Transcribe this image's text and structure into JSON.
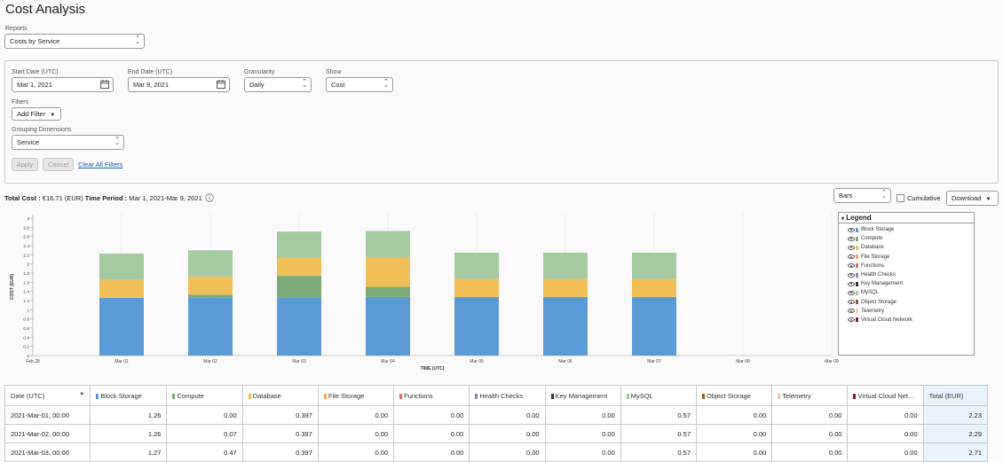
{
  "page": {
    "title": "Cost Analysis"
  },
  "reports": {
    "label": "Reports",
    "value": "Costs by Service"
  },
  "filters": {
    "start_date_label": "Start Date (UTC)",
    "start_date_value": "Mar 1, 2021",
    "end_date_label": "End Date (UTC)",
    "end_date_value": "Mar 9, 2021",
    "granularity_label": "Granularity",
    "granularity_value": "Daily",
    "show_label": "Show",
    "show_value": "Cost",
    "filters_label": "Filters",
    "add_filter_label": "Add Filter",
    "grouping_label": "Grouping Dimensions",
    "grouping_value": "Service",
    "apply_label": "Apply",
    "cancel_label": "Cancel",
    "clear_label": "Clear All Filters"
  },
  "summary": {
    "total_cost_label": "Total Cost :",
    "total_cost_value": "€16.71 (EUR)",
    "time_period_label": "Time Period :",
    "time_period_value": "Mar 1, 2021-Mar 9, 2021",
    "info_icon": "info-icon"
  },
  "chart_controls": {
    "chart_type_value": "Bars",
    "cumulative_label": "Cumulative",
    "download_label": "Download"
  },
  "legend": {
    "title": "Legend",
    "items": [
      {
        "label": "Block Storage",
        "color": "#5b9bd5"
      },
      {
        "label": "Compute",
        "color": "#7aaa78"
      },
      {
        "label": "Database",
        "color": "#f0bf58"
      },
      {
        "label": "File Storage",
        "color": "#f4a361"
      },
      {
        "label": "Functions",
        "color": "#e06c75"
      },
      {
        "label": "Health Checks",
        "color": "#9b7bc0"
      },
      {
        "label": "Key Management",
        "color": "#333333"
      },
      {
        "label": "MySQL",
        "color": "#a5c9a1"
      },
      {
        "label": "Object Storage",
        "color": "#8a5a3c"
      },
      {
        "label": "Telemetry",
        "color": "#f7c59f"
      },
      {
        "label": "Virtual Cloud Network",
        "color": "#8b1a2b"
      }
    ]
  },
  "chart_data": {
    "type": "bar",
    "stacked": true,
    "xlabel": "TIME (UTC)",
    "ylabel": "COST (EUR)",
    "ylim": [
      0,
      3
    ],
    "yticks": [
      "0",
      "0.2",
      "0.4",
      "0.6",
      "0.8",
      "1",
      "1.2",
      "1.4",
      "1.6",
      "1.8",
      "2",
      "2.2",
      "2.4",
      "2.6",
      "2.8",
      "3"
    ],
    "categories": [
      "Feb 28",
      "Mar 01",
      "Mar 02",
      "Mar 03",
      "Mar 04",
      "Mar 05",
      "Mar 06",
      "Mar 07",
      "Mar 08",
      "Mar 09"
    ],
    "series": [
      {
        "name": "Block Storage",
        "color": "#5b9bd5",
        "values": [
          0,
          1.26,
          1.26,
          1.27,
          1.28,
          1.28,
          1.28,
          1.28,
          0,
          0
        ]
      },
      {
        "name": "Compute",
        "color": "#7aaa78",
        "values": [
          0,
          0,
          0.07,
          0.47,
          0.22,
          0,
          0,
          0,
          0,
          0
        ]
      },
      {
        "name": "Database",
        "color": "#f0bf58",
        "values": [
          0,
          0.397,
          0.397,
          0.397,
          0.65,
          0.397,
          0.397,
          0.397,
          0,
          0
        ]
      },
      {
        "name": "MySQL",
        "color": "#a5c9a1",
        "values": [
          0,
          0.57,
          0.57,
          0.57,
          0.57,
          0.57,
          0.57,
          0.57,
          0,
          0
        ]
      }
    ]
  },
  "table": {
    "headers": [
      {
        "label": "Date (UTC)",
        "color": ""
      },
      {
        "label": "Block Storage",
        "color": "#5b9bd5"
      },
      {
        "label": "Compute",
        "color": "#7aaa78"
      },
      {
        "label": "Database",
        "color": "#f0bf58"
      },
      {
        "label": "File Storage",
        "color": "#f4a361"
      },
      {
        "label": "Functions",
        "color": "#e06c75"
      },
      {
        "label": "Health Checks",
        "color": "#9b7bc0"
      },
      {
        "label": "Key Management",
        "color": "#333333"
      },
      {
        "label": "MySQL",
        "color": "#a5c9a1"
      },
      {
        "label": "Object Storage",
        "color": "#8a5a3c"
      },
      {
        "label": "Telemetry",
        "color": "#f7c59f"
      },
      {
        "label": "Virtual Cloud Net...",
        "color": "#8b1a2b"
      },
      {
        "label": "Total (EUR)",
        "color": ""
      }
    ],
    "rows": [
      [
        "2021-Mar-01, 00:00",
        "1.26",
        "0.00",
        "0.397",
        "0.00",
        "0.00",
        "0.00",
        "0.00",
        "0.57",
        "0.00",
        "0.00",
        "0.00",
        "2.23"
      ],
      [
        "2021-Mar-02, 00:00",
        "1.26",
        "0.07",
        "0.397",
        "0.00",
        "0.00",
        "0.00",
        "0.00",
        "0.57",
        "0.00",
        "0.00",
        "0.00",
        "2.29"
      ],
      [
        "2021-Mar-03, 00:00",
        "1.27",
        "0.47",
        "0.397",
        "0.00",
        "0.00",
        "0.00",
        "0.00",
        "0.57",
        "0.00",
        "0.00",
        "0.00",
        "2.71"
      ]
    ]
  }
}
